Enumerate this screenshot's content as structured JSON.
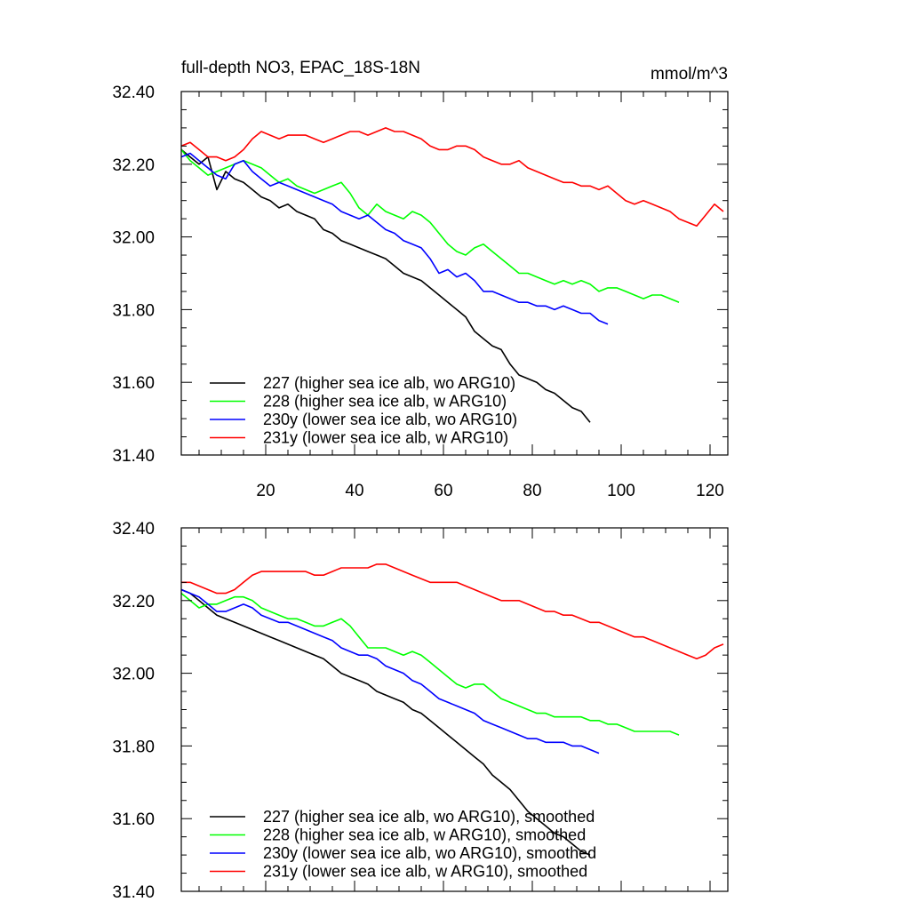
{
  "chart_data": [
    {
      "type": "line",
      "title": "full-depth NO3, EPAC_18S-18N",
      "units": "mmol/m^3",
      "xlim": [
        1,
        124
      ],
      "ylim": [
        31.4,
        32.4
      ],
      "yticks": [
        "32.40",
        "32.20",
        "32.00",
        "31.80",
        "31.60",
        "31.40"
      ],
      "xticks": [
        "20",
        "40",
        "60",
        "80",
        "100",
        "120"
      ],
      "series": [
        {
          "name": "227 (higher sea ice alb, wo ARG10)",
          "color": "#000000",
          "x": [
            1,
            3,
            5,
            7,
            9,
            11,
            13,
            15,
            17,
            19,
            21,
            23,
            25,
            27,
            29,
            31,
            33,
            35,
            37,
            39,
            41,
            43,
            45,
            47,
            49,
            51,
            53,
            55,
            57,
            59,
            61,
            63,
            65,
            67,
            69,
            71,
            73,
            75,
            77,
            79,
            81,
            83,
            85,
            87,
            89,
            91,
            93
          ],
          "y": [
            32.24,
            32.22,
            32.2,
            32.22,
            32.13,
            32.18,
            32.16,
            32.15,
            32.13,
            32.11,
            32.1,
            32.08,
            32.09,
            32.07,
            32.06,
            32.05,
            32.02,
            32.01,
            31.99,
            31.98,
            31.97,
            31.96,
            31.95,
            31.94,
            31.92,
            31.9,
            31.89,
            31.88,
            31.86,
            31.84,
            31.82,
            31.8,
            31.78,
            31.74,
            31.72,
            31.7,
            31.69,
            31.65,
            31.62,
            31.61,
            31.6,
            31.58,
            31.57,
            31.55,
            31.53,
            31.52,
            31.49
          ]
        },
        {
          "name": "228 (higher sea ice alb, w ARG10)",
          "color": "#00ff00",
          "x": [
            1,
            3,
            5,
            7,
            9,
            11,
            13,
            15,
            17,
            19,
            21,
            23,
            25,
            27,
            29,
            31,
            33,
            35,
            37,
            39,
            41,
            43,
            45,
            47,
            49,
            51,
            53,
            55,
            57,
            59,
            61,
            63,
            65,
            67,
            69,
            71,
            73,
            75,
            77,
            79,
            81,
            83,
            85,
            87,
            89,
            91,
            93,
            95,
            97,
            99,
            101,
            103,
            105,
            107,
            109,
            111,
            113
          ],
          "y": [
            32.24,
            32.21,
            32.19,
            32.17,
            32.18,
            32.19,
            32.2,
            32.21,
            32.2,
            32.19,
            32.17,
            32.15,
            32.16,
            32.14,
            32.13,
            32.12,
            32.13,
            32.14,
            32.15,
            32.12,
            32.08,
            32.06,
            32.09,
            32.07,
            32.06,
            32.05,
            32.07,
            32.06,
            32.04,
            32.01,
            31.98,
            31.96,
            31.95,
            31.97,
            31.98,
            31.96,
            31.94,
            31.92,
            31.9,
            31.9,
            31.89,
            31.88,
            31.87,
            31.88,
            31.87,
            31.88,
            31.87,
            31.85,
            31.86,
            31.86,
            31.85,
            31.84,
            31.83,
            31.84,
            31.84,
            31.83,
            31.82
          ]
        },
        {
          "name": "230y (lower sea ice alb, wo ARG10)",
          "color": "#0000ff",
          "x": [
            1,
            3,
            5,
            7,
            9,
            11,
            13,
            15,
            17,
            19,
            21,
            23,
            25,
            27,
            29,
            31,
            33,
            35,
            37,
            39,
            41,
            43,
            45,
            47,
            49,
            51,
            53,
            55,
            57,
            59,
            61,
            63,
            65,
            67,
            69,
            71,
            73,
            75,
            77,
            79,
            81,
            83,
            85,
            87,
            89,
            91,
            93,
            95,
            97
          ],
          "y": [
            32.22,
            32.23,
            32.21,
            32.19,
            32.17,
            32.16,
            32.2,
            32.21,
            32.18,
            32.16,
            32.14,
            32.15,
            32.14,
            32.13,
            32.12,
            32.11,
            32.1,
            32.09,
            32.07,
            32.06,
            32.05,
            32.06,
            32.04,
            32.02,
            32.01,
            31.99,
            31.98,
            31.97,
            31.94,
            31.9,
            31.91,
            31.89,
            31.9,
            31.88,
            31.85,
            31.85,
            31.84,
            31.83,
            31.82,
            31.82,
            31.81,
            31.81,
            31.8,
            31.81,
            31.8,
            31.79,
            31.79,
            31.77,
            31.76
          ]
        },
        {
          "name": "231y (lower sea ice alb, w ARG10)",
          "color": "#ff0000",
          "x": [
            1,
            3,
            5,
            7,
            9,
            11,
            13,
            15,
            17,
            19,
            21,
            23,
            25,
            27,
            29,
            31,
            33,
            35,
            37,
            39,
            41,
            43,
            45,
            47,
            49,
            51,
            53,
            55,
            57,
            59,
            61,
            63,
            65,
            67,
            69,
            71,
            73,
            75,
            77,
            79,
            81,
            83,
            85,
            87,
            89,
            91,
            93,
            95,
            97,
            99,
            101,
            103,
            105,
            107,
            109,
            111,
            113,
            115,
            117,
            119,
            121,
            123
          ],
          "y": [
            32.25,
            32.26,
            32.24,
            32.22,
            32.22,
            32.21,
            32.22,
            32.24,
            32.27,
            32.29,
            32.28,
            32.27,
            32.28,
            32.28,
            32.28,
            32.27,
            32.26,
            32.27,
            32.28,
            32.29,
            32.29,
            32.28,
            32.29,
            32.3,
            32.29,
            32.29,
            32.28,
            32.27,
            32.25,
            32.24,
            32.24,
            32.25,
            32.25,
            32.24,
            32.22,
            32.21,
            32.2,
            32.2,
            32.21,
            32.19,
            32.18,
            32.17,
            32.16,
            32.15,
            32.15,
            32.14,
            32.14,
            32.13,
            32.14,
            32.12,
            32.1,
            32.09,
            32.1,
            32.09,
            32.08,
            32.07,
            32.05,
            32.04,
            32.03,
            32.06,
            32.09,
            32.07
          ]
        }
      ]
    },
    {
      "type": "line",
      "xlim": [
        1,
        124
      ],
      "ylim": [
        31.4,
        32.4
      ],
      "yticks": [
        "32.40",
        "32.20",
        "32.00",
        "31.80",
        "31.60",
        "31.40"
      ],
      "series": [
        {
          "name": "227 (higher sea ice alb, wo ARG10), smoothed",
          "color": "#000000",
          "x": [
            1,
            3,
            5,
            7,
            9,
            11,
            13,
            15,
            17,
            19,
            21,
            23,
            25,
            27,
            29,
            31,
            33,
            35,
            37,
            39,
            41,
            43,
            45,
            47,
            49,
            51,
            53,
            55,
            57,
            59,
            61,
            63,
            65,
            67,
            69,
            71,
            73,
            75,
            77,
            79,
            81,
            83,
            85,
            87,
            89,
            91,
            93
          ],
          "y": [
            32.23,
            32.22,
            32.2,
            32.18,
            32.16,
            32.15,
            32.14,
            32.13,
            32.12,
            32.11,
            32.1,
            32.09,
            32.08,
            32.07,
            32.06,
            32.05,
            32.04,
            32.02,
            32.0,
            31.99,
            31.98,
            31.97,
            31.95,
            31.94,
            31.93,
            31.92,
            31.9,
            31.89,
            31.87,
            31.85,
            31.83,
            31.81,
            31.79,
            31.77,
            31.75,
            31.72,
            31.7,
            31.68,
            31.65,
            31.62,
            31.6,
            31.58,
            31.56,
            31.55,
            31.53,
            31.51,
            31.5
          ]
        },
        {
          "name": "228 (higher sea ice alb, w ARG10), smoothed",
          "color": "#00ff00",
          "x": [
            1,
            3,
            5,
            7,
            9,
            11,
            13,
            15,
            17,
            19,
            21,
            23,
            25,
            27,
            29,
            31,
            33,
            35,
            37,
            39,
            41,
            43,
            45,
            47,
            49,
            51,
            53,
            55,
            57,
            59,
            61,
            63,
            65,
            67,
            69,
            71,
            73,
            75,
            77,
            79,
            81,
            83,
            85,
            87,
            89,
            91,
            93,
            95,
            97,
            99,
            101,
            103,
            105,
            107,
            109,
            111,
            113
          ],
          "y": [
            32.22,
            32.2,
            32.18,
            32.19,
            32.19,
            32.2,
            32.21,
            32.21,
            32.2,
            32.18,
            32.17,
            32.16,
            32.15,
            32.15,
            32.14,
            32.13,
            32.13,
            32.14,
            32.15,
            32.13,
            32.1,
            32.07,
            32.07,
            32.07,
            32.06,
            32.05,
            32.06,
            32.05,
            32.03,
            32.01,
            31.99,
            31.97,
            31.96,
            31.97,
            31.97,
            31.95,
            31.93,
            31.92,
            31.91,
            31.9,
            31.89,
            31.89,
            31.88,
            31.88,
            31.88,
            31.88,
            31.87,
            31.87,
            31.86,
            31.86,
            31.85,
            31.84,
            31.84,
            31.84,
            31.84,
            31.84,
            31.83
          ]
        },
        {
          "name": "230y (lower sea ice alb, wo ARG10), smoothed",
          "color": "#0000ff",
          "x": [
            1,
            3,
            5,
            7,
            9,
            11,
            13,
            15,
            17,
            19,
            21,
            23,
            25,
            27,
            29,
            31,
            33,
            35,
            37,
            39,
            41,
            43,
            45,
            47,
            49,
            51,
            53,
            55,
            57,
            59,
            61,
            63,
            65,
            67,
            69,
            71,
            73,
            75,
            77,
            79,
            81,
            83,
            85,
            87,
            89,
            91,
            93,
            95
          ],
          "y": [
            32.23,
            32.22,
            32.21,
            32.19,
            32.17,
            32.17,
            32.18,
            32.19,
            32.18,
            32.16,
            32.15,
            32.14,
            32.14,
            32.13,
            32.12,
            32.11,
            32.1,
            32.09,
            32.07,
            32.06,
            32.05,
            32.05,
            32.04,
            32.02,
            32.01,
            32.0,
            31.98,
            31.97,
            31.95,
            31.93,
            31.92,
            31.91,
            31.9,
            31.89,
            31.87,
            31.86,
            31.85,
            31.84,
            31.83,
            31.82,
            31.82,
            31.81,
            31.81,
            31.81,
            31.8,
            31.8,
            31.79,
            31.78
          ]
        },
        {
          "name": "231y (lower sea ice alb, w ARG10), smoothed",
          "color": "#ff0000",
          "x": [
            1,
            3,
            5,
            7,
            9,
            11,
            13,
            15,
            17,
            19,
            21,
            23,
            25,
            27,
            29,
            31,
            33,
            35,
            37,
            39,
            41,
            43,
            45,
            47,
            49,
            51,
            53,
            55,
            57,
            59,
            61,
            63,
            65,
            67,
            69,
            71,
            73,
            75,
            77,
            79,
            81,
            83,
            85,
            87,
            89,
            91,
            93,
            95,
            97,
            99,
            101,
            103,
            105,
            107,
            109,
            111,
            113,
            115,
            117,
            119,
            121,
            123
          ],
          "y": [
            32.25,
            32.25,
            32.24,
            32.23,
            32.22,
            32.22,
            32.23,
            32.25,
            32.27,
            32.28,
            32.28,
            32.28,
            32.28,
            32.28,
            32.28,
            32.27,
            32.27,
            32.28,
            32.29,
            32.29,
            32.29,
            32.29,
            32.3,
            32.3,
            32.29,
            32.28,
            32.27,
            32.26,
            32.25,
            32.25,
            32.25,
            32.25,
            32.24,
            32.23,
            32.22,
            32.21,
            32.2,
            32.2,
            32.2,
            32.19,
            32.18,
            32.17,
            32.17,
            32.16,
            32.16,
            32.15,
            32.14,
            32.14,
            32.13,
            32.12,
            32.11,
            32.1,
            32.1,
            32.09,
            32.08,
            32.07,
            32.06,
            32.05,
            32.04,
            32.05,
            32.07,
            32.08
          ]
        }
      ]
    }
  ]
}
